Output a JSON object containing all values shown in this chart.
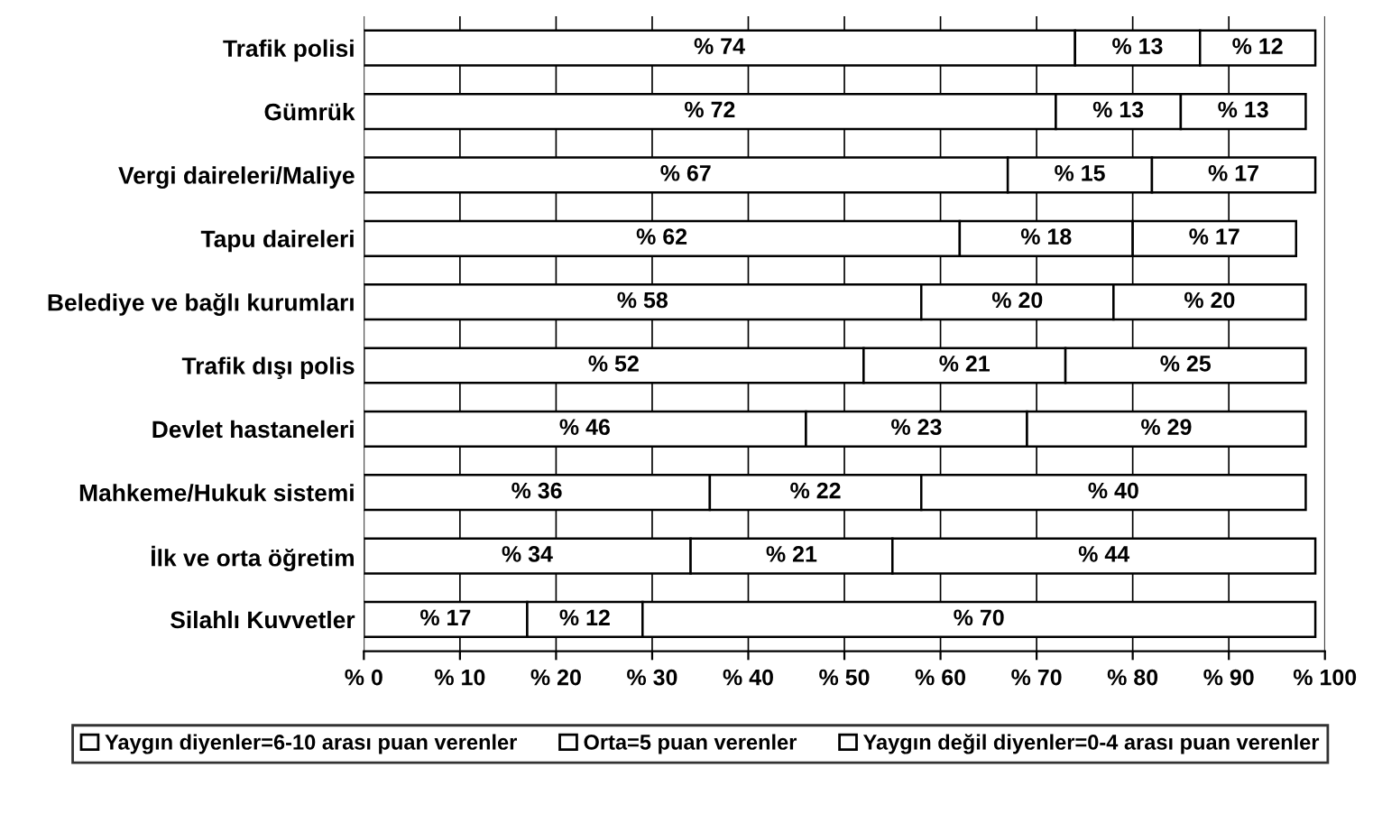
{
  "chart_data": {
    "type": "bar",
    "orientation": "horizontal",
    "stacked": true,
    "categories": [
      "Trafik polisi",
      "Gümrük",
      "Vergi daireleri/Maliye",
      "Tapu daireleri",
      "Belediye ve bağlı kurumları",
      "Trafik dışı polis",
      "Devlet hastaneleri",
      "Mahkeme/Hukuk sistemi",
      "İlk ve orta öğretim",
      "Silahlı Kuvvetler"
    ],
    "series": [
      {
        "name": "Yaygın diyenler=6-10 arası puan verenler",
        "color": "#ffffff",
        "values": [
          74,
          72,
          67,
          62,
          58,
          52,
          46,
          36,
          34,
          17
        ],
        "value_labels": [
          "% 74",
          "% 72",
          "% 67",
          "% 62",
          "% 58",
          "% 52",
          "% 46",
          "% 36",
          "% 34",
          "% 17"
        ]
      },
      {
        "name": "Orta=5 puan verenler",
        "color": "#ffffff",
        "values": [
          13,
          13,
          15,
          18,
          20,
          21,
          23,
          22,
          21,
          12
        ],
        "value_labels": [
          "% 13",
          "% 13",
          "% 15",
          "% 18",
          "% 20",
          "% 21",
          "% 23",
          "% 22",
          "% 21",
          "% 12"
        ]
      },
      {
        "name": "Yaygın değil diyenler=0-4 arası puan verenler",
        "color": "#ffffff",
        "values": [
          12,
          13,
          17,
          17,
          20,
          25,
          29,
          40,
          44,
          70
        ],
        "value_labels": [
          "% 12",
          "% 13",
          "% 17",
          "% 17",
          "% 20",
          "% 25",
          "% 29",
          "% 40",
          "% 44",
          "% 70"
        ]
      }
    ],
    "xlim": [
      0,
      100
    ],
    "xticks": [
      {
        "value": 0,
        "label": "% 0"
      },
      {
        "value": 10,
        "label": "% 10"
      },
      {
        "value": 20,
        "label": "% 20"
      },
      {
        "value": 30,
        "label": "% 30"
      },
      {
        "value": 40,
        "label": "% 40"
      },
      {
        "value": 50,
        "label": "% 50"
      },
      {
        "value": 60,
        "label": "% 60"
      },
      {
        "value": 70,
        "label": "% 70"
      },
      {
        "value": 80,
        "label": "% 80"
      },
      {
        "value": 90,
        "label": "% 90"
      },
      {
        "value": 100,
        "label": "% 100"
      }
    ],
    "grid": "x",
    "legend": "bottom"
  }
}
